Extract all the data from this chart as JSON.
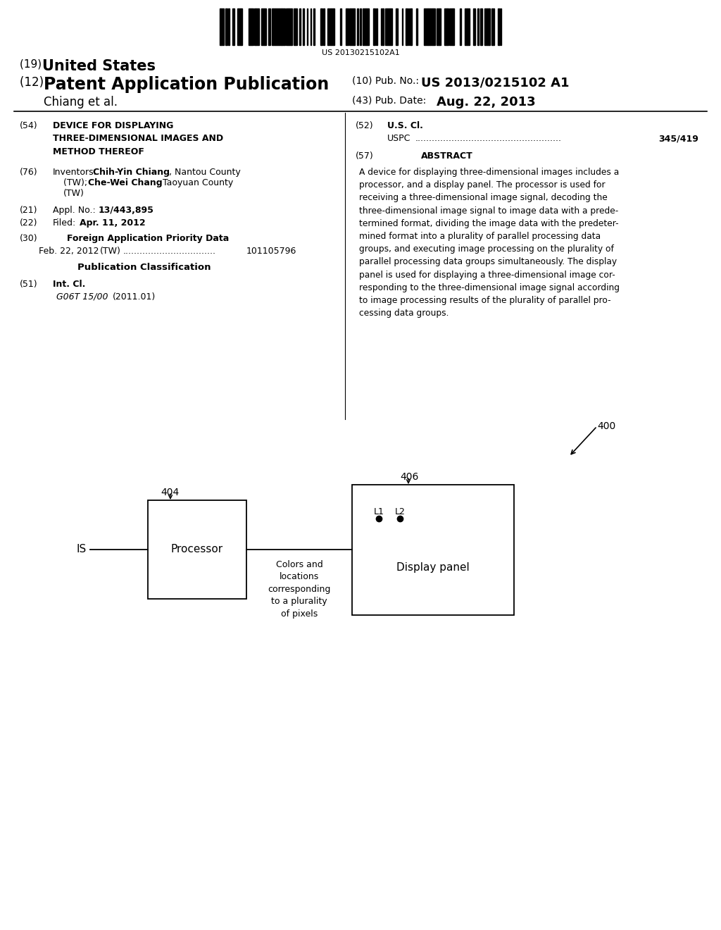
{
  "bg_color": "#ffffff",
  "barcode_text": "US 20130215102A1",
  "title_19_pre": "(19) ",
  "title_19_main": "United States",
  "title_12_pre": "(12) ",
  "title_12_main": "Patent Application Publication",
  "pub_no_label": "(10) Pub. No.:",
  "pub_no_value": "US 2013/0215102 A1",
  "author": "Chiang et al.",
  "pub_date_label": "(43) Pub. Date:",
  "pub_date_value": "Aug. 22, 2013",
  "field54_label": "(54)",
  "field54_text_bold": "DEVICE FOR DISPLAYING\nTHREE-DIMENSIONAL IMAGES AND\nMETHOD THEREOF",
  "field76_label": "(76)",
  "field76_title": "Inventors:",
  "field76_name1_bold": "Chih-Yin Chiang",
  "field76_name1_rest": ", Nantou County",
  "field76_line2_bold": "Che-Wei Chang",
  "field76_line2_rest": ", Taoyuan County",
  "field76_line3": "(TW)",
  "field21_label": "(21)",
  "field21_title": "Appl. No.:",
  "field21_value": "13/443,895",
  "field22_label": "(22)",
  "field22_title": "Filed:",
  "field22_value": "Apr. 11, 2012",
  "field30_label": "(30)",
  "field30_title": "Foreign Application Priority Data",
  "field30_date": "Feb. 22, 2012",
  "field30_country": "(TW)",
  "field30_dots": ".................................",
  "field30_number": "101105796",
  "pub_class_title": "Publication Classification",
  "field51_label": "(51)",
  "field51_title": "Int. Cl.",
  "field51_class": "G06T 15/00",
  "field51_year": "(2011.01)",
  "field52_label": "(52)",
  "field52_title": "U.S. Cl.",
  "field52_uspc": "USPC",
  "field52_dots": "....................................................",
  "field52_number": "345/419",
  "field57_label": "(57)",
  "field57_title": "ABSTRACT",
  "abstract_text": "A device for displaying three-dimensional images includes a\nprocessor, and a display panel. The processor is used for\nreceiving a three-dimensional image signal, decoding the\nthree-dimensional image signal to image data with a prede-\ntermined format, dividing the image data with the predeter-\nmined format into a plurality of parallel processing data\ngroups, and executing image processing on the plurality of\nparallel processing data groups simultaneously. The display\npanel is used for displaying a three-dimensional image cor-\nresponding to the three-dimensional image signal according\nto image processing results of the plurality of parallel pro-\ncessing data groups.",
  "diagram_ref": "400",
  "proc_box_label": "404",
  "proc_text": "Processor",
  "is_label": "IS",
  "display_box_label": "406",
  "display_text": "Display panel",
  "conn_label": "Colors and\nlocations\ncorresponding\nto a plurality\nof pixels",
  "l1_label": "L1",
  "l2_label": "L2"
}
